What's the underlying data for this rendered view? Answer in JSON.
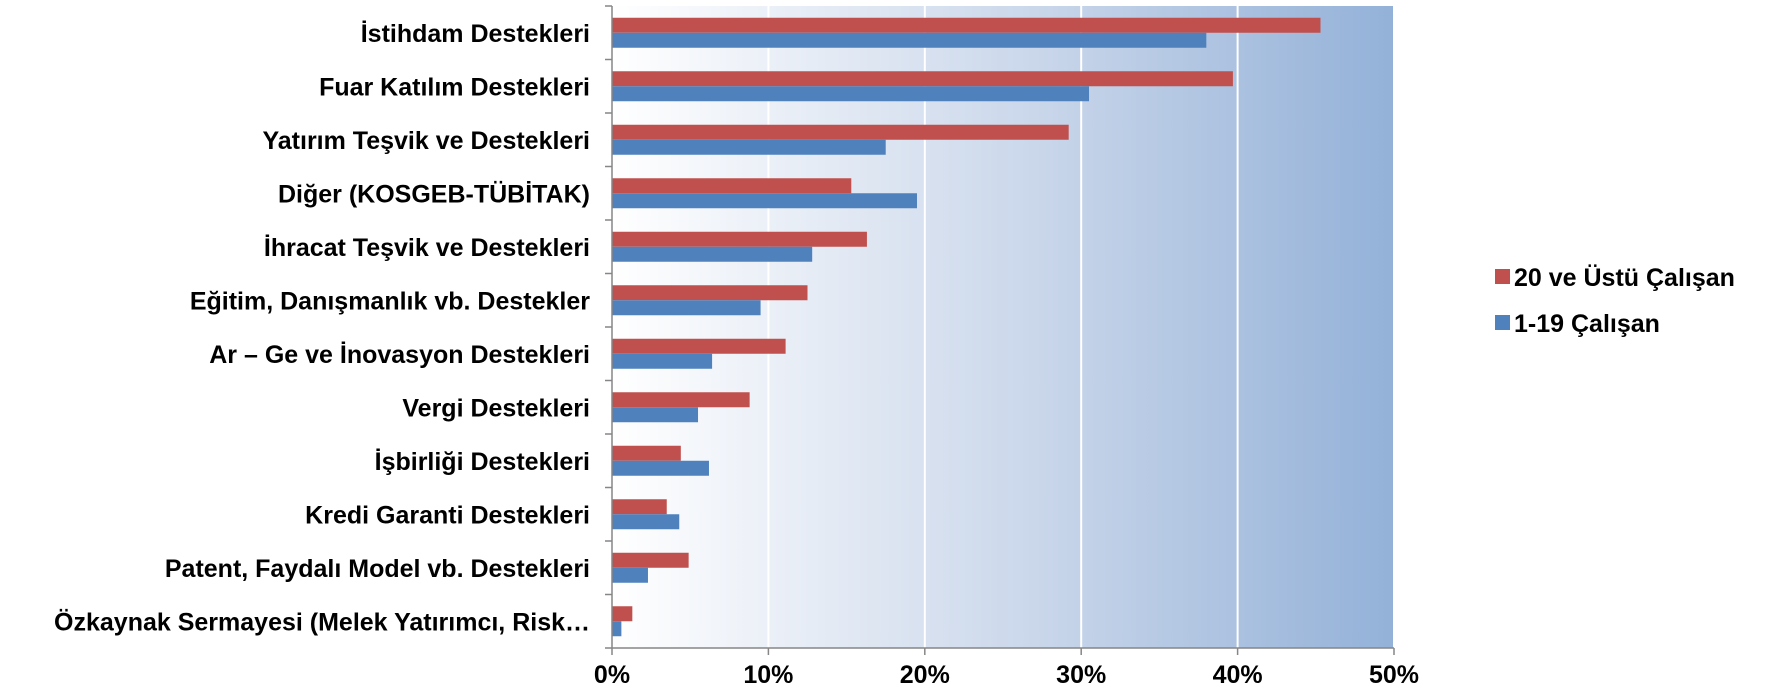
{
  "chart_data": {
    "type": "bar",
    "orientation": "horizontal",
    "categories": [
      "İstihdam Destekleri",
      "Fuar Katılım Destekleri",
      "Yatırım Teşvik ve Destekleri",
      "Diğer (KOSGEB-TÜBİTAK)",
      "İhracat Teşvik ve Destekleri",
      "Eğitim, Danışmanlık vb. Destekler",
      "Ar – Ge ve İnovasyon Destekleri",
      "Vergi Destekleri",
      "İşbirliği Destekleri",
      "Kredi Garanti Destekleri",
      "Patent, Faydalı Model vb. Destekleri",
      "Özkaynak Sermayesi (Melek Yatırımcı, Risk…"
    ],
    "series": [
      {
        "name": "20 ve Üstü Çalışan",
        "color": "#C0504D",
        "values": [
          45.3,
          39.7,
          29.2,
          15.3,
          16.3,
          12.5,
          11.1,
          8.8,
          4.4,
          3.5,
          4.9,
          1.3
        ]
      },
      {
        "name": "1-19 Çalışan",
        "color": "#4F81BD",
        "values": [
          38.0,
          30.5,
          17.5,
          19.5,
          12.8,
          9.5,
          6.4,
          5.5,
          6.2,
          4.3,
          2.3,
          0.6
        ]
      }
    ],
    "xlim": [
      0,
      50
    ],
    "xticks": [
      "0%",
      "10%",
      "20%",
      "30%",
      "40%",
      "50%"
    ],
    "grid": true,
    "legend_position": "right",
    "background": "gradient-light-to-blue"
  }
}
